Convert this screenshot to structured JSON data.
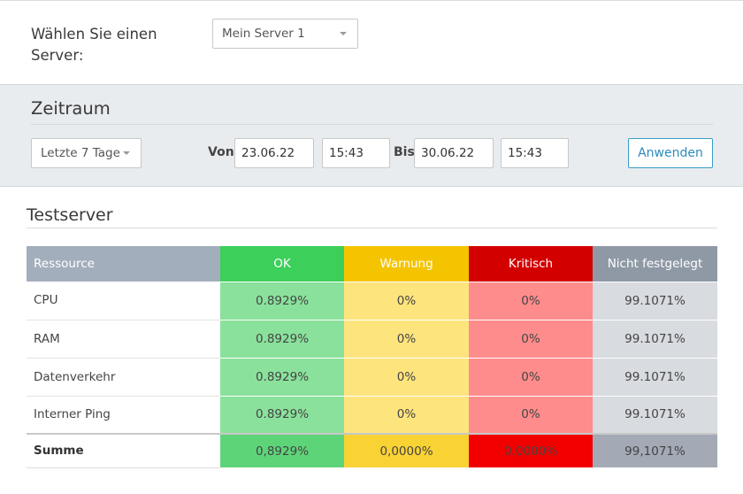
{
  "server": {
    "label": "Wählen Sie einen Server:",
    "selected": "Mein Server 1"
  },
  "range": {
    "title": "Zeitraum",
    "period_selected": "Letzte 7 Tage",
    "from_label": "Von",
    "from_date": "23.06.22",
    "from_time": "15:43",
    "to_label": "Bis",
    "to_date": "30.06.22",
    "to_time": "15:43",
    "apply_label": "Anwenden"
  },
  "table": {
    "title": "Testserver",
    "headers": {
      "resource": "Ressource",
      "ok": "OK",
      "warning": "Warnung",
      "critical": "Kritisch",
      "undefined": "Nicht festgelegt"
    },
    "rows": [
      {
        "resource": "CPU",
        "ok": "0.8929%",
        "warning": "0%",
        "critical": "0%",
        "undefined": "99.1071%"
      },
      {
        "resource": "RAM",
        "ok": "0.8929%",
        "warning": "0%",
        "critical": "0%",
        "undefined": "99.1071%"
      },
      {
        "resource": "Datenverkehr",
        "ok": "0.8929%",
        "warning": "0%",
        "critical": "0%",
        "undefined": "99.1071%"
      },
      {
        "resource": "Interner Ping",
        "ok": "0.8929%",
        "warning": "0%",
        "critical": "0%",
        "undefined": "99.1071%"
      }
    ],
    "sum": {
      "resource": "Summe",
      "ok": "0,8929%",
      "warning": "0,0000%",
      "critical": "0,0000%",
      "undefined": "99,1071%"
    }
  },
  "colors": {
    "header_resource": "#a3aebc",
    "header_ok": "#3ccf5a",
    "header_warning": "#f5c400",
    "header_critical": "#d30000",
    "header_undefined": "#8f99a6",
    "cell_ok": "#8ae19b",
    "cell_warning": "#fde47d",
    "cell_critical": "#ff8c8c",
    "cell_undefined": "#d8dbe0",
    "sum_ok": "#5ed479",
    "sum_warning": "#f9d234",
    "sum_critical": "#f20000",
    "sum_undefined": "#a3aab6"
  }
}
